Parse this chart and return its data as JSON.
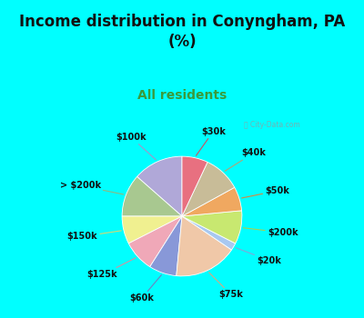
{
  "title": "Income distribution in Conyngham, PA\n(%)",
  "subtitle": "All residents",
  "labels": [
    "$100k",
    "> $200k",
    "$150k",
    "$125k",
    "$60k",
    "$75k",
    "$20k",
    "$200k",
    "$50k",
    "$40k",
    "$30k"
  ],
  "sizes": [
    13.5,
    11.5,
    7.5,
    8.5,
    7.5,
    17.0,
    2.0,
    9.0,
    6.5,
    10.0,
    7.0
  ],
  "colors": [
    "#b0a8d8",
    "#a8c890",
    "#f0f090",
    "#f0a8b8",
    "#8898d8",
    "#f0c8a8",
    "#a8c8f0",
    "#c8e870",
    "#f0a860",
    "#c8bc98",
    "#e87080"
  ],
  "line_colors": [
    "#a098c8",
    "#90b880",
    "#d8d870",
    "#d890a0",
    "#7080c0",
    "#d8a880",
    "#80a8d8",
    "#a8d050",
    "#d88840",
    "#b0a478",
    "#d05060"
  ],
  "bg_cyan": "#00ffff",
  "bg_chart": "#daf0e8",
  "title_color": "#111111",
  "subtitle_color": "#3a9a3a",
  "startangle": 90,
  "title_fontsize": 12,
  "subtitle_fontsize": 10,
  "label_fontsize": 7
}
